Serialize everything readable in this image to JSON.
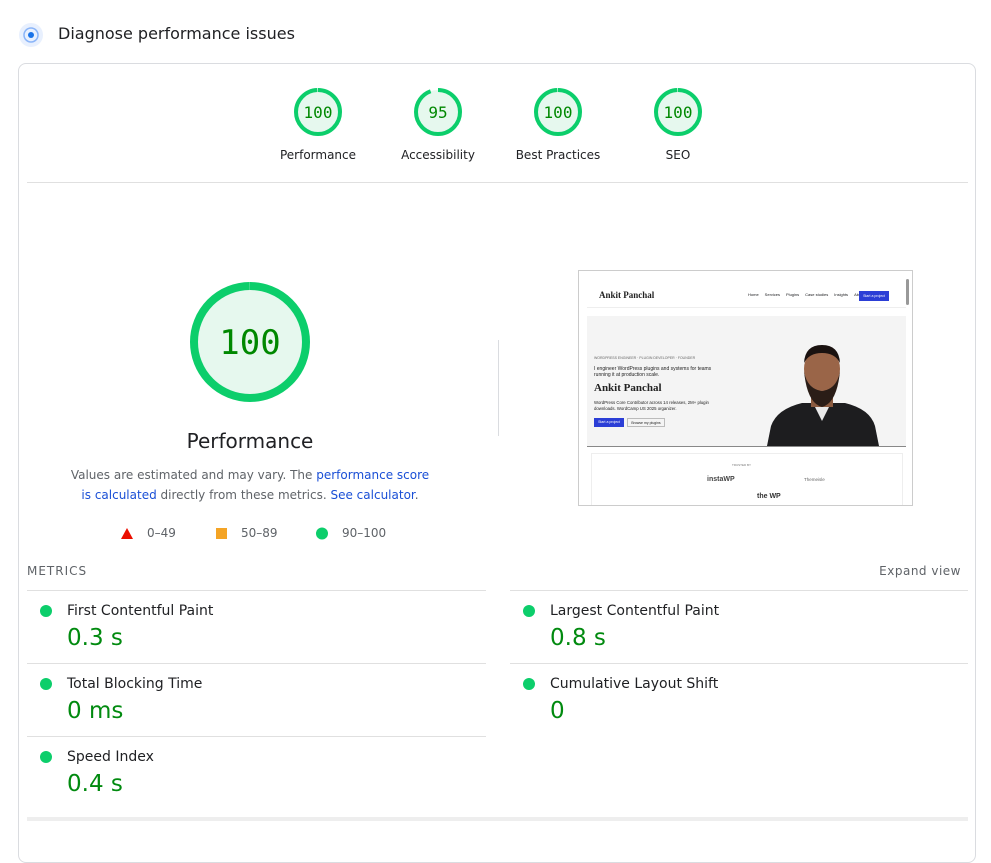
{
  "header": {
    "title": "Diagnose performance issues"
  },
  "categories": [
    {
      "score": 100,
      "label": "Performance"
    },
    {
      "score": 95,
      "label": "Accessibility"
    },
    {
      "score": 100,
      "label": "Best Practices"
    },
    {
      "score": 100,
      "label": "SEO"
    }
  ],
  "summary": {
    "score": 100,
    "title": "Performance",
    "note": [
      "Values are estimated and may vary. The ",
      "performance score is calculated",
      " directly from these metrics. ",
      "See calculator",
      "."
    ],
    "legend": [
      "0–49",
      "50–89",
      "90–100"
    ]
  },
  "metrics": {
    "title": "METRICS",
    "toggle": "Expand view",
    "items": [
      {
        "name": "First Contentful Paint",
        "value": "0.3 s"
      },
      {
        "name": "Largest Contentful Paint",
        "value": "0.8 s"
      },
      {
        "name": "Total Blocking Time",
        "value": "0 ms"
      },
      {
        "name": "Cumulative Layout Shift",
        "value": "0"
      },
      {
        "name": "Speed Index",
        "value": "0.4 s"
      }
    ]
  },
  "preview": {
    "brand": "Ankit Panchal",
    "nav": [
      "Home",
      "Services",
      "Plugins",
      "Case studies",
      "Insights",
      "About"
    ],
    "cta": "Start a project",
    "eyebrow": "WORDPRESS ENGINEER · PLUGIN DEVELOPER · FOUNDER",
    "tagline": "I engineer WordPress plugins and systems for teams running it at production scale.",
    "name": "Ankit Panchal",
    "bio": "WordPress Core Contributor across 14 releases, 2M+ plugin downloads. WordCamp US 2025 organizer.",
    "buttons": [
      "Start a project",
      "Browse my plugins"
    ],
    "trusted": "TRUSTED BY",
    "logos": [
      "instaWP",
      "Themeisle",
      "the WP"
    ]
  }
}
